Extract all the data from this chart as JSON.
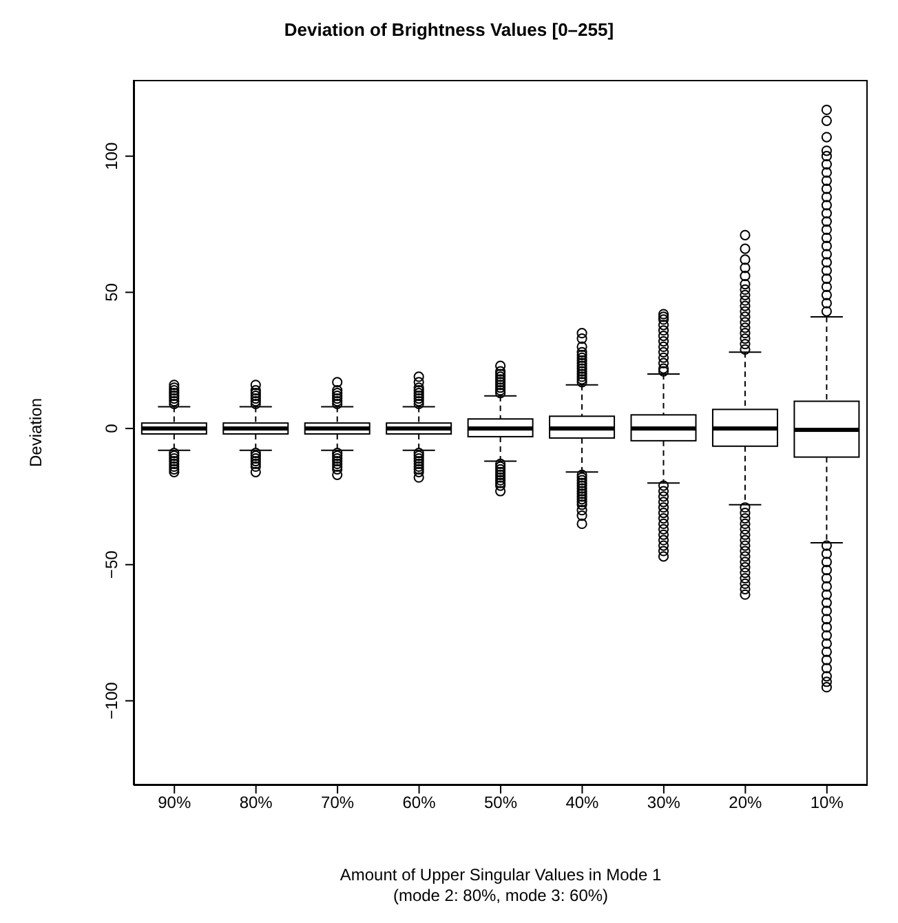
{
  "chart_data": {
    "type": "box",
    "title": "Deviation of Brightness Values [0–255]",
    "xlabel": "Amount of Upper Singular Values in Mode 1",
    "subtitle": "(mode 2: 80%, mode 3: 60%)",
    "ylabel": "Deviation",
    "categories": [
      "90%",
      "80%",
      "70%",
      "60%",
      "50%",
      "40%",
      "30%",
      "20%",
      "10%"
    ],
    "ylim": [
      -131,
      128
    ],
    "yticks": [
      -100,
      -50,
      0,
      50,
      100
    ],
    "color": "#000000",
    "boxes": [
      {
        "low": -8,
        "q1": -2,
        "median": 0,
        "q3": 2,
        "high": 8,
        "outliers": [
          9,
          10,
          11,
          12,
          13,
          14,
          15,
          16,
          -9,
          -10,
          -11,
          -12,
          -13,
          -14,
          -15,
          -16
        ]
      },
      {
        "low": -8,
        "q1": -2,
        "median": 0,
        "q3": 2,
        "high": 8,
        "outliers": [
          9,
          10,
          11,
          12,
          13,
          14,
          16,
          -9,
          -10,
          -11,
          -12,
          -13,
          -14,
          -16
        ]
      },
      {
        "low": -8,
        "q1": -2,
        "median": 0,
        "q3": 2,
        "high": 8,
        "outliers": [
          9,
          10,
          11,
          12,
          13,
          14,
          17,
          -9,
          -10,
          -11,
          -12,
          -13,
          -14,
          -15,
          -17
        ]
      },
      {
        "low": -8,
        "q1": -2,
        "median": 0,
        "q3": 2,
        "high": 8,
        "outliers": [
          9,
          10,
          11,
          12,
          13,
          14,
          15,
          17,
          19,
          -9,
          -10,
          -11,
          -12,
          -13,
          -14,
          -15,
          -16,
          -18
        ]
      },
      {
        "low": -12,
        "q1": -3,
        "median": 0,
        "q3": 3.5,
        "high": 12,
        "outliers": [
          13,
          14,
          15,
          16,
          17,
          18,
          19,
          20,
          21,
          23,
          -13,
          -14,
          -15,
          -16,
          -17,
          -18,
          -19,
          -20,
          -21,
          -23
        ]
      },
      {
        "low": -16,
        "q1": -3.5,
        "median": 0,
        "q3": 4.5,
        "high": 16,
        "outliers": [
          17,
          18,
          19,
          20,
          21,
          22,
          23,
          24,
          25,
          26,
          27,
          28,
          30,
          33,
          35,
          -17,
          -18,
          -19,
          -20,
          -21,
          -22,
          -23,
          -24,
          -25,
          -26,
          -27,
          -28,
          -30,
          -32,
          -35
        ]
      },
      {
        "low": -20,
        "q1": -4.5,
        "median": 0,
        "q3": 5,
        "high": 20,
        "outliers": [
          21,
          22,
          24,
          26,
          28,
          30,
          32,
          34,
          36,
          38,
          40,
          41,
          42,
          -21,
          -23,
          -25,
          -27,
          -29,
          -31,
          -33,
          -35,
          -37,
          -39,
          -41,
          -43,
          -45,
          -47
        ]
      },
      {
        "low": -28,
        "q1": -6.5,
        "median": 0,
        "q3": 7,
        "high": 28,
        "outliers": [
          29,
          31,
          33,
          35,
          37,
          39,
          41,
          43,
          45,
          47,
          49,
          51,
          53,
          56,
          59,
          62,
          66,
          71,
          -29,
          -31,
          -33,
          -35,
          -37,
          -39,
          -41,
          -43,
          -45,
          -47,
          -49,
          -51,
          -53,
          -55,
          -57,
          -59,
          -61
        ]
      },
      {
        "low": -42,
        "q1": -10.5,
        "median": -0.5,
        "q3": 10,
        "high": 41,
        "outliers": [
          43,
          46,
          49,
          52,
          55,
          58,
          61,
          64,
          67,
          70,
          73,
          76,
          79,
          82,
          85,
          88,
          91,
          94,
          97,
          100,
          102,
          107,
          113,
          117,
          -43,
          -46,
          -49,
          -52,
          -55,
          -58,
          -61,
          -64,
          -67,
          -70,
          -73,
          -76,
          -79,
          -82,
          -85,
          -88,
          -91,
          -93,
          -95
        ]
      }
    ]
  }
}
